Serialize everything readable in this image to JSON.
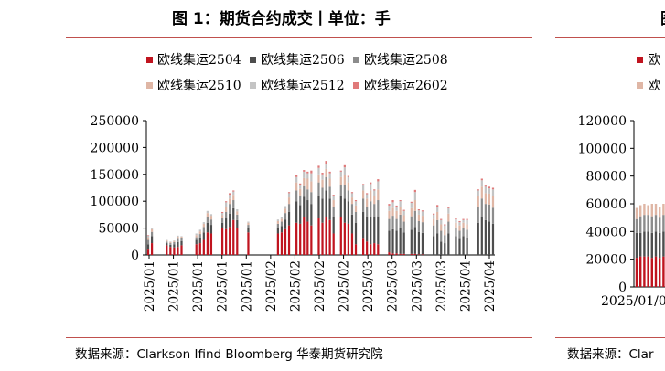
{
  "left_panel": {
    "title": "图 1：期货合约成交丨单位：手",
    "source": "数据来源：Clarkson Ifind Bloomberg 华泰期货研究院"
  },
  "right_panel": {
    "title_partial": "图",
    "source_partial": "数据来源：Clar",
    "legend_partial": [
      "欧",
      "欧"
    ],
    "y_ticks": [
      "120000",
      "100000",
      "80000",
      "60000",
      "40000",
      "20000",
      "0"
    ],
    "x_tick_partial": "2025/01/01"
  },
  "colors": {
    "2504": "#c0141f",
    "2506": "#4d4d4d",
    "2508": "#8c8c8c",
    "2510": "#dfb6a5",
    "2512": "#c4c4c4",
    "2602": "#e07a7a",
    "rule": "#c0504d"
  },
  "chart_data": [
    {
      "type": "bar",
      "stacked": true,
      "title": "图 1：期货合约成交丨单位：手",
      "ylim": [
        0,
        250000
      ],
      "yticks": [
        0,
        50000,
        100000,
        150000,
        200000,
        250000
      ],
      "ytick_labels": [
        "0",
        "50000",
        "100000",
        "150000",
        "200000",
        "250000"
      ],
      "xtick_labels": [
        "2025/01",
        "2025/01",
        "2025/01",
        "2025/01",
        "2025/01",
        "2025/02",
        "2025/02",
        "2025/02",
        "2025/02",
        "2025/03",
        "2025/03",
        "2025/03",
        "2025/03",
        "2025/04",
        "2025/04"
      ],
      "legend_position": "top",
      "series_names": [
        "欧线集运2504",
        "欧线集运2506",
        "欧线集运2508",
        "欧线集运2510",
        "欧线集运2512",
        "欧线集运2602"
      ],
      "stack_note": "each day: [2504, 2506, 2508, 2510, 2512, 2602]",
      "days": [
        [
          10000,
          10000,
          8000,
          5000,
          3000,
          1000
        ],
        [
          22000,
          13000,
          8000,
          5000,
          3000,
          0
        ],
        [
          0,
          0,
          0,
          0,
          0,
          0
        ],
        [
          0,
          0,
          0,
          0,
          0,
          0
        ],
        [
          0,
          0,
          0,
          0,
          0,
          0
        ],
        [
          18000,
          4000,
          3000,
          2000,
          1000,
          0
        ],
        [
          15000,
          4000,
          3000,
          2000,
          1000,
          0
        ],
        [
          14000,
          6000,
          4000,
          2000,
          1000,
          0
        ],
        [
          15000,
          9000,
          6000,
          4000,
          2000,
          0
        ],
        [
          18000,
          8000,
          5000,
          3000,
          1000,
          0
        ],
        [
          0,
          0,
          0,
          0,
          0,
          0
        ],
        [
          0,
          0,
          0,
          0,
          0,
          0
        ],
        [
          0,
          0,
          0,
          0,
          0,
          0
        ],
        [
          20000,
          8000,
          5000,
          4000,
          3000,
          0
        ],
        [
          22000,
          10000,
          7000,
          5000,
          3000,
          0
        ],
        [
          28000,
          14000,
          10000,
          6000,
          3000,
          0
        ],
        [
          42000,
          18000,
          10000,
          8000,
          4000,
          0
        ],
        [
          40000,
          16000,
          10000,
          7000,
          3000,
          0
        ],
        [
          0,
          0,
          0,
          0,
          0,
          0
        ],
        [
          0,
          0,
          0,
          0,
          0,
          0
        ],
        [
          50000,
          10000,
          8000,
          6000,
          4000,
          2000
        ],
        [
          48000,
          20000,
          12000,
          10000,
          8000,
          2000
        ],
        [
          52000,
          25000,
          18000,
          10000,
          7000,
          3000
        ],
        [
          65000,
          22000,
          15000,
          10000,
          6000,
          2000
        ],
        [
          50000,
          15000,
          10000,
          6000,
          4000,
          0
        ],
        [
          0,
          0,
          0,
          0,
          0,
          0
        ],
        [
          0,
          0,
          0,
          0,
          0,
          0
        ],
        [
          42000,
          8000,
          6000,
          4000,
          2000,
          0
        ],
        [
          0,
          0,
          0,
          0,
          0,
          0
        ],
        [
          0,
          0,
          0,
          0,
          0,
          0
        ],
        [
          0,
          0,
          0,
          0,
          0,
          0
        ],
        [
          0,
          0,
          0,
          0,
          0,
          0
        ],
        [
          0,
          0,
          0,
          0,
          0,
          0
        ],
        [
          0,
          0,
          0,
          0,
          0,
          0
        ],
        [
          0,
          0,
          0,
          0,
          0,
          0
        ],
        [
          40000,
          10000,
          8000,
          5000,
          3000,
          0
        ],
        [
          42000,
          12000,
          8000,
          5000,
          3000,
          0
        ],
        [
          48000,
          18000,
          12000,
          8000,
          5000,
          0
        ],
        [
          55000,
          25000,
          15000,
          12000,
          8000,
          2000
        ],
        [
          0,
          0,
          0,
          0,
          0,
          0
        ],
        [
          60000,
          40000,
          20000,
          15000,
          10000,
          3000
        ],
        [
          58000,
          35000,
          18000,
          12000,
          8000,
          2000
        ],
        [
          70000,
          38000,
          20000,
          15000,
          12000,
          3000
        ],
        [
          62000,
          40000,
          20000,
          20000,
          10000,
          3000
        ],
        [
          55000,
          40000,
          22000,
          20000,
          15000,
          5000
        ],
        [
          0,
          0,
          0,
          0,
          0,
          0
        ],
        [
          68000,
          42000,
          25000,
          15000,
          12000,
          4000
        ],
        [
          60000,
          45000,
          20000,
          15000,
          10000,
          3000
        ],
        [
          70000,
          50000,
          25000,
          15000,
          10000,
          5000
        ],
        [
          65000,
          40000,
          22000,
          15000,
          10000,
          3000
        ],
        [
          40000,
          30000,
          20000,
          12000,
          8000,
          2000
        ],
        [
          0,
          0,
          0,
          0,
          0,
          0
        ],
        [
          70000,
          40000,
          20000,
          15000,
          10000,
          2000
        ],
        [
          60000,
          45000,
          25000,
          18000,
          15000,
          4000
        ],
        [
          58000,
          42000,
          20000,
          15000,
          10000,
          2000
        ],
        [
          40000,
          35000,
          20000,
          12000,
          8000,
          2000
        ],
        [
          20000,
          40000,
          20000,
          12000,
          8000,
          2000
        ],
        [
          0,
          0,
          0,
          0,
          0,
          0
        ],
        [
          30000,
          50000,
          25000,
          15000,
          10000,
          2000
        ],
        [
          25000,
          45000,
          20000,
          15000,
          8000,
          2000
        ],
        [
          20000,
          50000,
          30000,
          20000,
          12000,
          3000
        ],
        [
          22000,
          48000,
          25000,
          15000,
          10000,
          2000
        ],
        [
          20000,
          52000,
          30000,
          20000,
          15000,
          4000
        ],
        [
          0,
          0,
          0,
          0,
          0,
          0
        ],
        [
          0,
          0,
          0,
          0,
          0,
          0
        ],
        [
          5000,
          40000,
          22000,
          15000,
          10000,
          3000
        ],
        [
          3000,
          45000,
          25000,
          15000,
          10000,
          4000
        ],
        [
          3000,
          42000,
          22000,
          15000,
          8000,
          2000
        ],
        [
          2000,
          48000,
          25000,
          15000,
          10000,
          2000
        ],
        [
          2000,
          40000,
          20000,
          12000,
          8000,
          2000
        ],
        [
          0,
          0,
          0,
          0,
          0,
          0
        ],
        [
          2000,
          45000,
          25000,
          15000,
          10000,
          2000
        ],
        [
          2000,
          50000,
          30000,
          20000,
          15000,
          4000
        ],
        [
          1000,
          42000,
          20000,
          12000,
          8000,
          2000
        ],
        [
          1000,
          40000,
          20000,
          12000,
          8000,
          2000
        ],
        [
          0,
          0,
          0,
          0,
          0,
          0
        ],
        [
          0,
          0,
          0,
          0,
          0,
          0
        ],
        [
          0,
          35000,
          20000,
          12000,
          8000,
          2000
        ],
        [
          0,
          40000,
          25000,
          15000,
          10000,
          3000
        ],
        [
          0,
          25000,
          20000,
          12000,
          8000,
          2000
        ],
        [
          0,
          22000,
          15000,
          10000,
          8000,
          2000
        ],
        [
          0,
          40000,
          22000,
          15000,
          10000,
          3000
        ],
        [
          0,
          0,
          0,
          0,
          0,
          0
        ],
        [
          0,
          35000,
          15000,
          10000,
          6000,
          2000
        ],
        [
          0,
          30000,
          15000,
          10000,
          6000,
          2000
        ],
        [
          0,
          35000,
          15000,
          10000,
          5000,
          2000
        ],
        [
          0,
          32000,
          15000,
          10000,
          8000,
          2000
        ],
        [
          0,
          0,
          0,
          0,
          0,
          0
        ],
        [
          0,
          0,
          0,
          0,
          0,
          0
        ],
        [
          0,
          60000,
          30000,
          20000,
          10000,
          2000
        ],
        [
          0,
          70000,
          35000,
          22000,
          12000,
          3000
        ],
        [
          0,
          65000,
          30000,
          20000,
          12000,
          2000
        ],
        [
          0,
          62000,
          32000,
          20000,
          10000,
          3000
        ],
        [
          0,
          58000,
          30000,
          22000,
          12000,
          3000
        ]
      ]
    },
    {
      "type": "bar",
      "stacked": true,
      "partial": true,
      "ylim": [
        0,
        120000
      ],
      "yticks": [
        0,
        20000,
        40000,
        60000,
        80000,
        100000,
        120000
      ],
      "visible_days": [
        [
          21000,
          18000,
          10000,
          8000,
          0,
          0
        ],
        [
          22000,
          17000,
          12000,
          8000,
          0,
          0
        ],
        [
          22000,
          18000,
          12000,
          8000,
          0,
          0
        ],
        [
          22000,
          18000,
          12000,
          7000,
          0,
          0
        ],
        [
          21000,
          18000,
          12000,
          9000,
          0,
          0
        ],
        [
          22000,
          18000,
          12000,
          8000,
          0,
          0
        ],
        [
          21000,
          18000,
          11000,
          8000,
          0,
          0
        ],
        [
          22000,
          18000,
          12000,
          8000,
          0,
          0
        ]
      ]
    }
  ]
}
